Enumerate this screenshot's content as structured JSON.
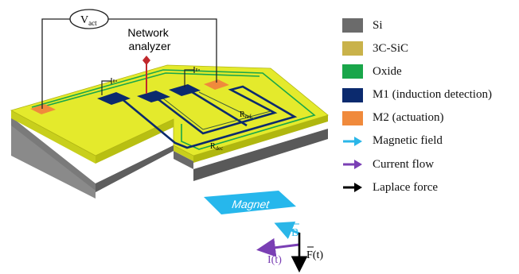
{
  "labels": {
    "vact_main": "V",
    "vact_sub": "act",
    "network_line1": "Network",
    "network_line2": "analyzer",
    "rref_main": "R",
    "rref_sub": "ref",
    "rdec_main": "R",
    "rdec_sub": "dec",
    "magnet": "Magnet",
    "vector_b": "B",
    "vector_i": "I(t)",
    "vector_f": "F(t)"
  },
  "legend": [
    {
      "label": "Si",
      "kind": "swatch",
      "color": "#6b6b6b"
    },
    {
      "label": "3C-SiC",
      "kind": "swatch",
      "color": "#c9b24a"
    },
    {
      "label": "Oxide",
      "kind": "swatch",
      "color": "#19a64a"
    },
    {
      "label": "M1 (induction detection)",
      "kind": "swatch",
      "color": "#0b2a6e"
    },
    {
      "label": "M2 (actuation)",
      "kind": "swatch",
      "color": "#f08a3c"
    },
    {
      "label": "Magnetic field",
      "kind": "arrow",
      "color": "#2ab6e8"
    },
    {
      "label": "Current flow",
      "kind": "arrow",
      "color": "#7a3fb4"
    },
    {
      "label": "Laplace force",
      "kind": "arrow",
      "color": "#000000"
    }
  ],
  "colors": {
    "si": "#6b6b6b",
    "sic_top": "#e4ea2c",
    "sic_side": "#c8cf1c",
    "oxide": "#19a64a",
    "m1": "#0b2a6e",
    "m2": "#f08a3c",
    "field": "#2ab6e8",
    "current": "#7a3fb4",
    "force": "#000000",
    "probe": "#c0282c"
  }
}
